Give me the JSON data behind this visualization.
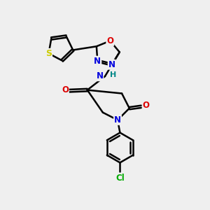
{
  "bg_color": "#efefef",
  "bond_color": "#000000",
  "bond_width": 1.8,
  "atom_colors": {
    "S": "#cccc00",
    "N": "#0000dd",
    "O": "#dd0000",
    "Cl": "#00aa00",
    "H": "#008888",
    "C": "#000000"
  },
  "fig_width": 3.0,
  "fig_height": 3.0,
  "dpi": 100,
  "xlim": [
    0,
    10
  ],
  "ylim": [
    0,
    10
  ]
}
